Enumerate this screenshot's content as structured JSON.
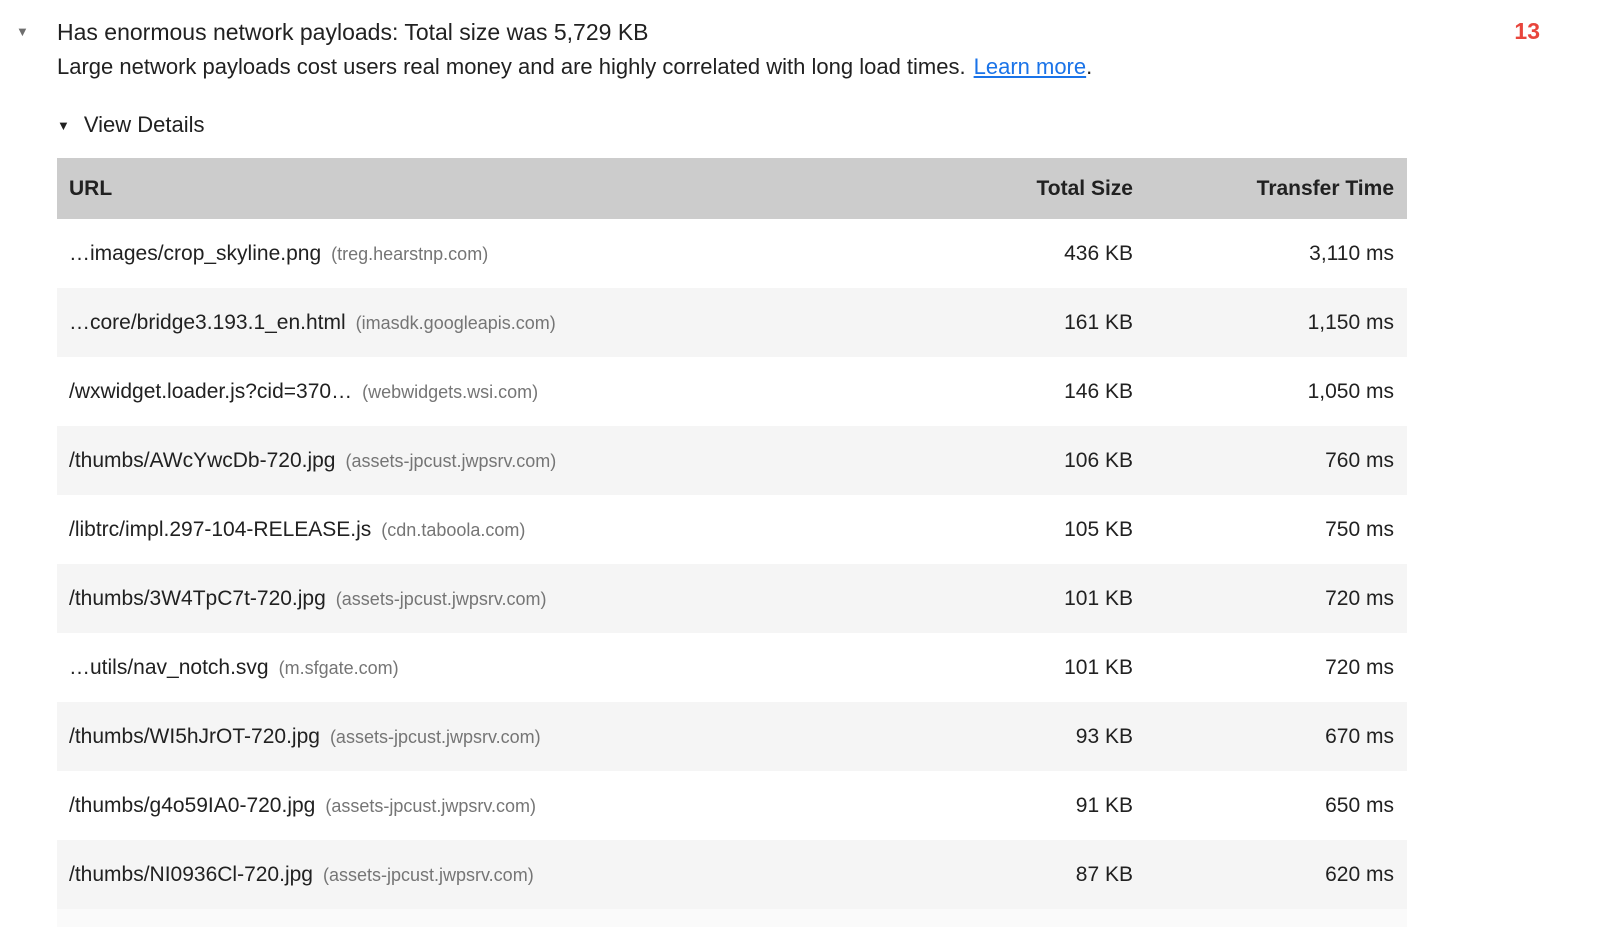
{
  "audit": {
    "title": "Has enormous network payloads: Total size was 5,729 KB",
    "description": "Large network payloads cost users real money and are highly correlated with long load times.",
    "learn_more_label": "Learn more",
    "period": ".",
    "score": "13",
    "view_details_label": "View Details",
    "disclosure_icon": "▼",
    "view_details_icon": "▼"
  },
  "colors": {
    "score_red": "#e8453c",
    "link_blue": "#1a73e8",
    "table_header_bg": "#cccccc",
    "row_alt_bg": "#f5f5f5",
    "domain_gray": "#757575"
  },
  "table": {
    "headers": [
      "URL",
      "Total Size",
      "Transfer Time"
    ],
    "rows": [
      {
        "url": "…images/crop_skyline.png",
        "domain": "(treg.hearstnp.com)",
        "size": "436 KB",
        "time": "3,110 ms"
      },
      {
        "url": "…core/bridge3.193.1_en.html",
        "domain": "(imasdk.googleapis.com)",
        "size": "161 KB",
        "time": "1,150 ms"
      },
      {
        "url": "/wxwidget.loader.js?cid=370…",
        "domain": "(webwidgets.wsi.com)",
        "size": "146 KB",
        "time": "1,050 ms"
      },
      {
        "url": "/thumbs/AWcYwcDb-720.jpg",
        "domain": "(assets-jpcust.jwpsrv.com)",
        "size": "106 KB",
        "time": "760 ms"
      },
      {
        "url": "/libtrc/impl.297-104-RELEASE.js",
        "domain": "(cdn.taboola.com)",
        "size": "105 KB",
        "time": "750 ms"
      },
      {
        "url": "/thumbs/3W4TpC7t-720.jpg",
        "domain": "(assets-jpcust.jwpsrv.com)",
        "size": "101 KB",
        "time": "720 ms"
      },
      {
        "url": "…utils/nav_notch.svg",
        "domain": "(m.sfgate.com)",
        "size": "101 KB",
        "time": "720 ms"
      },
      {
        "url": "/thumbs/WI5hJrOT-720.jpg",
        "domain": "(assets-jpcust.jwpsrv.com)",
        "size": "93 KB",
        "time": "670 ms"
      },
      {
        "url": "/thumbs/g4o59IA0-720.jpg",
        "domain": "(assets-jpcust.jwpsrv.com)",
        "size": "91 KB",
        "time": "650 ms"
      },
      {
        "url": "/thumbs/NI0936Cl-720.jpg",
        "domain": "(assets-jpcust.jwpsrv.com)",
        "size": "87 KB",
        "time": "620 ms"
      }
    ]
  }
}
